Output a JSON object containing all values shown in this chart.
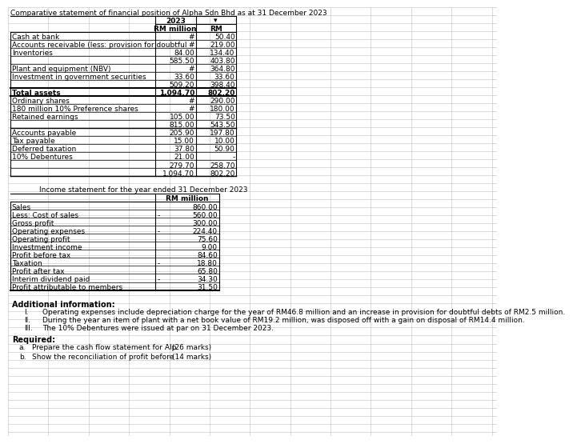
{
  "title": "Comparative statement of financial position of Alpha Sdn Bhd as at 31 December 2023",
  "col2023_header": "2023",
  "col_prev_header": "▾",
  "subheader_col1": "RM million",
  "subheader_col2": "RM",
  "balance_sheet_rows": [
    {
      "label": "Cash at bank",
      "col1": "#",
      "col2": "50.40",
      "bold": false
    },
    {
      "label": "Accounts receivable (less: provision for doubtful",
      "col1": "#",
      "col2": "219.00",
      "bold": false
    },
    {
      "label": "Inventories",
      "col1": "84.00",
      "col2": "134.40",
      "bold": false
    },
    {
      "label": "",
      "col1": "585.50",
      "col2": "403.80",
      "bold": false
    },
    {
      "label": "Plant and equipment (NBV)",
      "col1": "#",
      "col2": "364.80",
      "bold": false
    },
    {
      "label": "Investment in government securities",
      "col1": "33.60",
      "col2": "33.60",
      "bold": false
    },
    {
      "label": "",
      "col1": "509.20",
      "col2": "398.40",
      "bold": false
    },
    {
      "label": "Total assets",
      "col1": "1,094.70",
      "col2": "802.20",
      "bold": true
    },
    {
      "label": "Ordinary shares",
      "col1": "#",
      "col2": "290.00",
      "bold": false
    },
    {
      "label": "180 million 10% Preference shares",
      "col1": "#",
      "col2": "180.00",
      "bold": false
    },
    {
      "label": "Retained earnings",
      "col1": "105.00",
      "col2": "73.50",
      "bold": false
    },
    {
      "label": "",
      "col1": "815.00",
      "col2": "543.50",
      "bold": false
    },
    {
      "label": "Accounts payable",
      "col1": "205.90",
      "col2": "197.80",
      "bold": false
    },
    {
      "label": "Tax payable",
      "col1": "15.00",
      "col2": "10.00",
      "bold": false
    },
    {
      "label": "Deferred taxation",
      "col1": "37.80",
      "col2": "50.90",
      "bold": false
    },
    {
      "label": "10% Debentures",
      "col1": "21.00",
      "col2": "-",
      "bold": false
    },
    {
      "label": "",
      "col1": "279.70",
      "col2": "258.70",
      "bold": false
    },
    {
      "label": "",
      "col1": "1,094.70",
      "col2": "802.20",
      "bold": false
    }
  ],
  "income_title": "Income statement for the year ended 31 December 2023",
  "income_subheader": "RM million",
  "income_rows": [
    {
      "label": "Sales",
      "sign": "",
      "value": "860.00"
    },
    {
      "label": "Less: Cost of sales",
      "sign": "-",
      "value": "560.00"
    },
    {
      "label": "Gross profit",
      "sign": "",
      "value": "300.00"
    },
    {
      "label": "Operating expenses",
      "sign": "-",
      "value": "224.40"
    },
    {
      "label": "Operating profit",
      "sign": "",
      "value": "75.60"
    },
    {
      "label": "Investment income",
      "sign": "",
      "value": "9.00"
    },
    {
      "label": "Profit before tax",
      "sign": "",
      "value": "84.60"
    },
    {
      "label": "Taxation",
      "sign": "-",
      "value": "18.80"
    },
    {
      "label": "Profit after tax",
      "sign": "",
      "value": "65.80"
    },
    {
      "label": "Interim dividend paid",
      "sign": "-",
      "value": "34.30"
    },
    {
      "label": "Profit attributable to members",
      "sign": "",
      "value": "31.50"
    }
  ],
  "add_info_title": "Additional information:",
  "add_info_labels": [
    "I.",
    "II.",
    "III."
  ],
  "add_info_items": [
    "Operating expenses include depreciation charge for the year of RM46.8 million and an increase in provision for doubtful debts of RM2.5 million.",
    "During the year an item of plant with a net book value of RM19.2 million, was disposed off with a gain on disposal of RM14.4 million.",
    "The 10% Debentures were issued at par on 31 December 2023."
  ],
  "required_title": "Required:",
  "required_items": [
    {
      "label": "a.",
      "text": "Prepare the cash flow statement for Alp",
      "marks": "(26 marks)"
    },
    {
      "label": "b.",
      "text": "Show the reconciliation of profit before",
      "marks": "(14 marks)"
    }
  ],
  "bg_color": "#ffffff",
  "grid_color": "#c0c0c0",
  "table_line_color": "#000000"
}
